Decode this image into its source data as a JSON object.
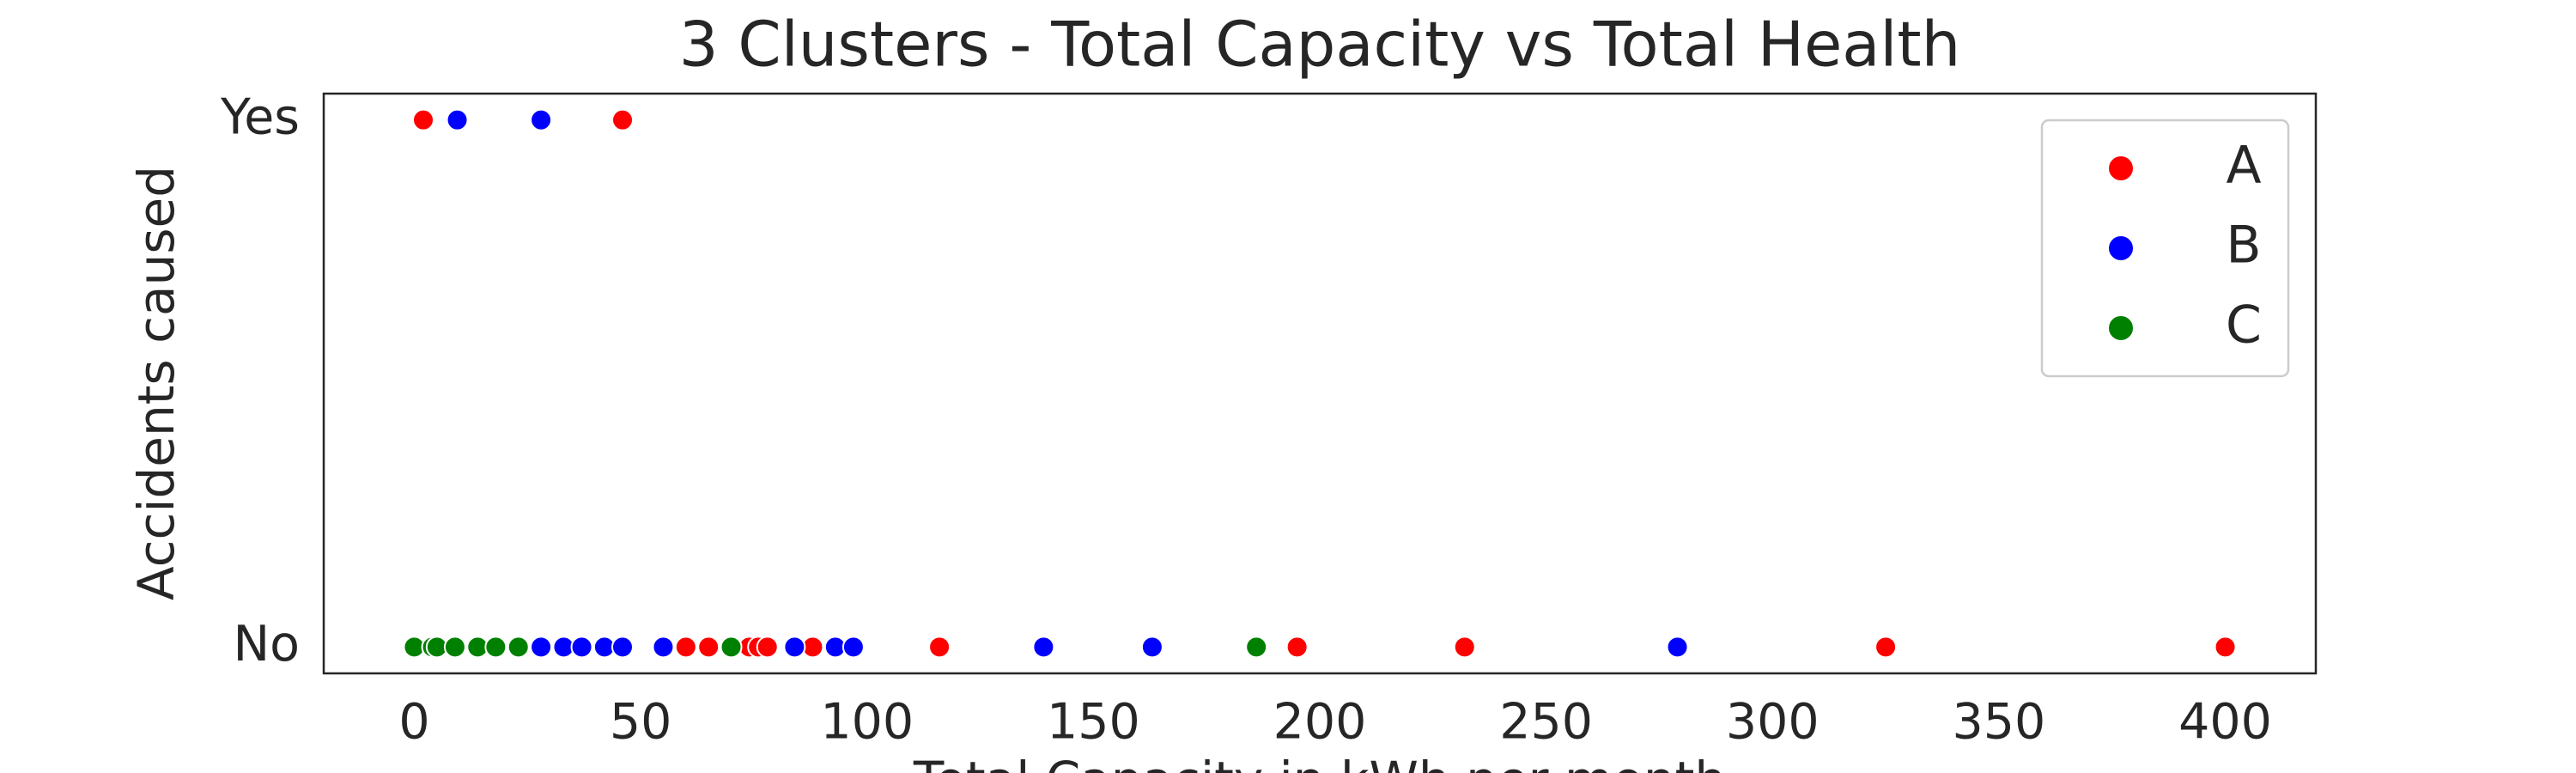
{
  "chart_data": {
    "type": "scatter",
    "title": "3 Clusters - Total Capacity vs Total Health",
    "x_label": "Total Capacity in kWh per month",
    "y_label": "Accidents caused",
    "xlim": [
      -20,
      420
    ],
    "xticks": [
      0,
      50,
      100,
      150,
      200,
      250,
      300,
      350,
      400
    ],
    "ylim": [
      -0.05,
      1.05
    ],
    "yticks": [
      {
        "value": 0,
        "label": "No"
      },
      {
        "value": 1,
        "label": "Yes"
      }
    ],
    "legend": "upper right",
    "series": [
      {
        "name": "A",
        "color": "#ff0000",
        "x": [
          2,
          46,
          60,
          65,
          74,
          76,
          78,
          88,
          116,
          195,
          232,
          325,
          400
        ],
        "values": [
          1,
          1,
          0,
          0,
          0,
          0,
          0,
          0,
          0,
          0,
          0,
          0,
          0
        ]
      },
      {
        "name": "B",
        "color": "#0000ff",
        "x": [
          9.5,
          28,
          28,
          33,
          37,
          42,
          46,
          55,
          84,
          93,
          97,
          139,
          163,
          279
        ],
        "values": [
          1,
          1,
          0,
          0,
          0,
          0,
          0,
          0,
          0,
          0,
          0,
          0,
          0,
          0
        ]
      },
      {
        "name": "C",
        "color": "#008000",
        "x": [
          0,
          4,
          5,
          9,
          14,
          18,
          23,
          70,
          186
        ],
        "values": [
          0,
          0,
          0,
          0,
          0,
          0,
          0,
          0,
          0
        ]
      }
    ]
  }
}
